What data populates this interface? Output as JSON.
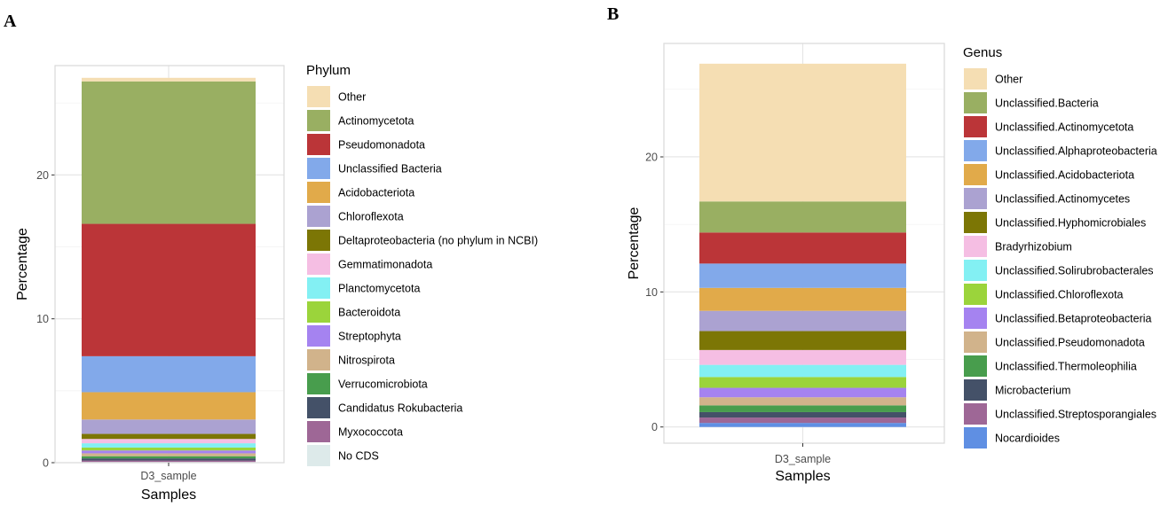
{
  "chart_data": [
    {
      "panel": "A",
      "type": "bar",
      "stacked": true,
      "categories": [
        "D3_sample"
      ],
      "xlabel": "Samples",
      "ylabel": "Percentage",
      "ylim": [
        0,
        27.6
      ],
      "yticks": [
        0,
        10,
        20
      ],
      "grid": true,
      "legend_title": "Phylum",
      "legend_position": "right",
      "series": [
        {
          "name": "Other",
          "values": [
            0.25
          ],
          "color": "#F5DEB3"
        },
        {
          "name": "Actinomycetota",
          "values": [
            9.9
          ],
          "color": "#99AF62"
        },
        {
          "name": "Pseudomonadota",
          "values": [
            9.2
          ],
          "color": "#BB3538"
        },
        {
          "name": "Unclassified Bacteria",
          "values": [
            2.5
          ],
          "color": "#82A9EA"
        },
        {
          "name": "Acidobacteriota",
          "values": [
            1.9
          ],
          "color": "#E1AA4A"
        },
        {
          "name": "Chloroflexota",
          "values": [
            1.0
          ],
          "color": "#ABA2D1"
        },
        {
          "name": "Deltaproteobacteria (no phylum in NCBI)",
          "values": [
            0.35
          ],
          "color": "#7C7605"
        },
        {
          "name": "Gemmatimonadota",
          "values": [
            0.3
          ],
          "color": "#F5BEE3"
        },
        {
          "name": "Planctomycetota",
          "values": [
            0.3
          ],
          "color": "#83F0F3"
        },
        {
          "name": "Bacteroidota",
          "values": [
            0.2
          ],
          "color": "#9BD43B"
        },
        {
          "name": "Streptophyta",
          "values": [
            0.2
          ],
          "color": "#A583F0"
        },
        {
          "name": "Nitrospirota",
          "values": [
            0.2
          ],
          "color": "#D1B38B"
        },
        {
          "name": "Verrucomicrobiota",
          "values": [
            0.15
          ],
          "color": "#489D4D"
        },
        {
          "name": "Candidatus Rokubacteria",
          "values": [
            0.15
          ],
          "color": "#445168"
        },
        {
          "name": "Myxococcota",
          "values": [
            0.1
          ],
          "color": "#9E6796"
        },
        {
          "name": "No CDS",
          "values": [
            0.05
          ],
          "color": "#DDEAEA"
        }
      ]
    },
    {
      "panel": "B",
      "type": "bar",
      "stacked": true,
      "categories": [
        "D3_sample"
      ],
      "xlabel": "Samples",
      "ylabel": "Percentage",
      "ylim": [
        -1.2,
        28.4
      ],
      "yticks": [
        0,
        10,
        20
      ],
      "grid": true,
      "legend_title": "Genus",
      "legend_position": "right",
      "series": [
        {
          "name": "Other",
          "values": [
            10.2
          ],
          "color": "#F5DEB3"
        },
        {
          "name": "Unclassified.Bacteria",
          "values": [
            2.3
          ],
          "color": "#99AF62"
        },
        {
          "name": "Unclassified.Actinomycetota",
          "values": [
            2.3
          ],
          "color": "#BB3538"
        },
        {
          "name": "Unclassified.Alphaproteobacteria",
          "values": [
            1.8
          ],
          "color": "#82A9EA"
        },
        {
          "name": "Unclassified.Acidobacteriota",
          "values": [
            1.7
          ],
          "color": "#E1AA4A"
        },
        {
          "name": "Unclassified.Actinomycetes",
          "values": [
            1.5
          ],
          "color": "#ABA2D1"
        },
        {
          "name": "Unclassified.Hyphomicrobiales",
          "values": [
            1.4
          ],
          "color": "#7C7605"
        },
        {
          "name": "Bradyrhizobium",
          "values": [
            1.1
          ],
          "color": "#F5BEE3"
        },
        {
          "name": "Unclassified.Solirubrobacterales",
          "values": [
            0.9
          ],
          "color": "#83F0F3"
        },
        {
          "name": "Unclassified.Chloroflexota",
          "values": [
            0.8
          ],
          "color": "#9BD43B"
        },
        {
          "name": "Unclassified.Betaproteobacteria",
          "values": [
            0.7
          ],
          "color": "#A583F0"
        },
        {
          "name": "Unclassified.Pseudomonadota",
          "values": [
            0.6
          ],
          "color": "#D1B38B"
        },
        {
          "name": "Unclassified.Thermoleophilia",
          "values": [
            0.5
          ],
          "color": "#489D4D"
        },
        {
          "name": "Microbacterium",
          "values": [
            0.4
          ],
          "color": "#445168"
        },
        {
          "name": "Unclassified.Streptosporangiales",
          "values": [
            0.4
          ],
          "color": "#9E6796"
        },
        {
          "name": "Nocardioides",
          "values": [
            0.3
          ],
          "color": "#5F8FE3"
        }
      ]
    }
  ]
}
